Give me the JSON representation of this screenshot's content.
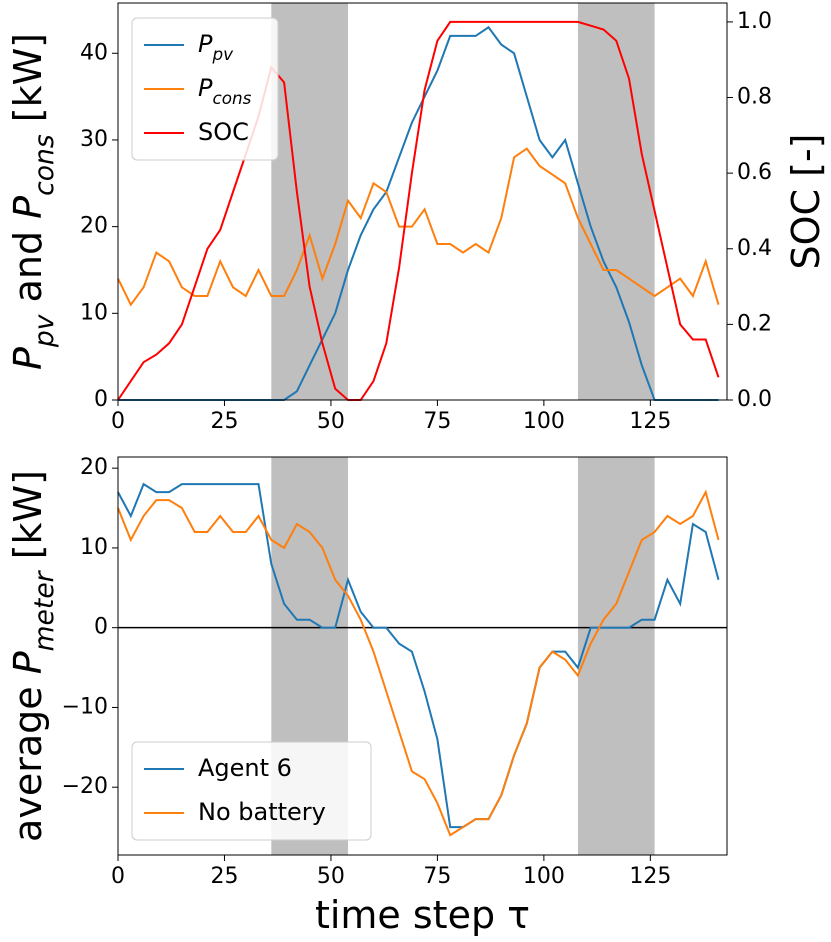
{
  "chart_data": [
    {
      "type": "line",
      "ylabel": "P_pv and P_cons [kW]",
      "y2label": "SOC [-]",
      "x": [
        0,
        3,
        6,
        9,
        12,
        15,
        18,
        21,
        24,
        27,
        30,
        33,
        36,
        39,
        42,
        45,
        48,
        51,
        54,
        57,
        60,
        63,
        66,
        69,
        72,
        75,
        78,
        81,
        84,
        87,
        90,
        93,
        96,
        99,
        102,
        105,
        108,
        111,
        114,
        117,
        120,
        123,
        126,
        129,
        132,
        135,
        138,
        141
      ],
      "series": [
        {
          "name": "P_pv",
          "color": "#1f77b4",
          "values": [
            0,
            0,
            0,
            0,
            0,
            0,
            0,
            0,
            0,
            0,
            0,
            0,
            0,
            0,
            1,
            4,
            7,
            10,
            15,
            19,
            22,
            24,
            28,
            32,
            35,
            38,
            42,
            42,
            42,
            43,
            41,
            40,
            35,
            30,
            28,
            30,
            25,
            20,
            16,
            13,
            9,
            4,
            0,
            0,
            0,
            0,
            0,
            0
          ]
        },
        {
          "name": "P_cons",
          "color": "#ff7f0e",
          "values": [
            14,
            11,
            13,
            17,
            16,
            13,
            12,
            12,
            16,
            13,
            12,
            15,
            12,
            12,
            15,
            19,
            14,
            18,
            23,
            21,
            25,
            24,
            20,
            20,
            22,
            18,
            18,
            17,
            18,
            17,
            21,
            28,
            29,
            27,
            26,
            25,
            21,
            18,
            15,
            15,
            14,
            13,
            12,
            13,
            14,
            12,
            16,
            11
          ]
        },
        {
          "name": "SOC",
          "color": "#ff0000",
          "axis": "y2",
          "values": [
            0,
            0.05,
            0.1,
            0.12,
            0.15,
            0.2,
            0.3,
            0.4,
            0.45,
            0.55,
            0.65,
            0.75,
            0.88,
            0.84,
            0.55,
            0.3,
            0.15,
            0.03,
            0,
            0,
            0.05,
            0.15,
            0.35,
            0.6,
            0.82,
            0.95,
            1,
            1,
            1,
            1,
            1,
            1,
            1,
            1,
            1,
            1,
            1,
            0.99,
            0.98,
            0.95,
            0.85,
            0.65,
            0.5,
            0.35,
            0.2,
            0.16,
            0.16,
            0.06
          ]
        }
      ],
      "xlim": [
        0,
        143
      ],
      "xticks": [
        0,
        25,
        50,
        75,
        100,
        125
      ],
      "ylim": [
        0,
        45.8
      ],
      "yticks": [
        0,
        10,
        20,
        30,
        40
      ],
      "y2lim": [
        0,
        1.05
      ],
      "y2ticks": [
        {
          "value": 0,
          "label": "0.0"
        },
        0.2,
        0.4,
        0.6,
        0.8,
        {
          "value": 1,
          "label": "1.0"
        }
      ],
      "shaded": [
        [
          36,
          54
        ],
        [
          108,
          126
        ]
      ],
      "shade_color": "#bfbfbf",
      "legend": "upper left"
    },
    {
      "type": "line",
      "ylabel": "average P_meter [kW]",
      "xlabel": "time step τ",
      "x": [
        0,
        3,
        6,
        9,
        12,
        15,
        18,
        21,
        24,
        27,
        30,
        33,
        36,
        39,
        42,
        45,
        48,
        51,
        54,
        57,
        60,
        63,
        66,
        69,
        72,
        75,
        78,
        81,
        84,
        87,
        90,
        93,
        96,
        99,
        102,
        105,
        108,
        111,
        114,
        117,
        120,
        123,
        126,
        129,
        132,
        135,
        138,
        141
      ],
      "series": [
        {
          "name": "Agent 6",
          "color": "#1f77b4",
          "values": [
            17,
            14,
            18,
            17,
            17,
            18,
            18,
            18,
            18,
            18,
            18,
            18,
            8,
            3,
            1,
            1,
            0,
            0,
            6,
            2,
            0,
            0,
            -2,
            -3,
            -8,
            -14,
            -25,
            -25,
            -24,
            -24,
            -21,
            -16,
            -12,
            -5,
            -3,
            -3,
            -5,
            0,
            0,
            0,
            0,
            1,
            1,
            6,
            3,
            13,
            12,
            6
          ]
        },
        {
          "name": "No battery",
          "color": "#ff7f0e",
          "values": [
            15,
            11,
            14,
            16,
            16,
            15,
            12,
            12,
            14,
            12,
            12,
            14,
            11,
            10,
            13,
            12,
            10,
            6,
            4,
            1,
            -3,
            -8,
            -13,
            -18,
            -19,
            -22,
            -26,
            -25,
            -24,
            -24,
            -21,
            -16,
            -12,
            -5,
            -3,
            -4,
            -6,
            -2,
            1,
            3,
            7,
            11,
            12,
            14,
            13,
            14,
            17,
            11
          ]
        }
      ],
      "xlim": [
        0,
        143
      ],
      "xticks": [
        0,
        25,
        50,
        75,
        100,
        125
      ],
      "ylim": [
        -28.5,
        21.4
      ],
      "yticks": [
        {
          "value": -20,
          "label": "−20"
        },
        {
          "value": -10,
          "label": "−10"
        },
        0,
        10,
        20
      ],
      "hline": 0,
      "shaded": [
        [
          36,
          54
        ],
        [
          108,
          126
        ]
      ],
      "shade_color": "#bfbfbf",
      "legend": "lower left"
    }
  ]
}
